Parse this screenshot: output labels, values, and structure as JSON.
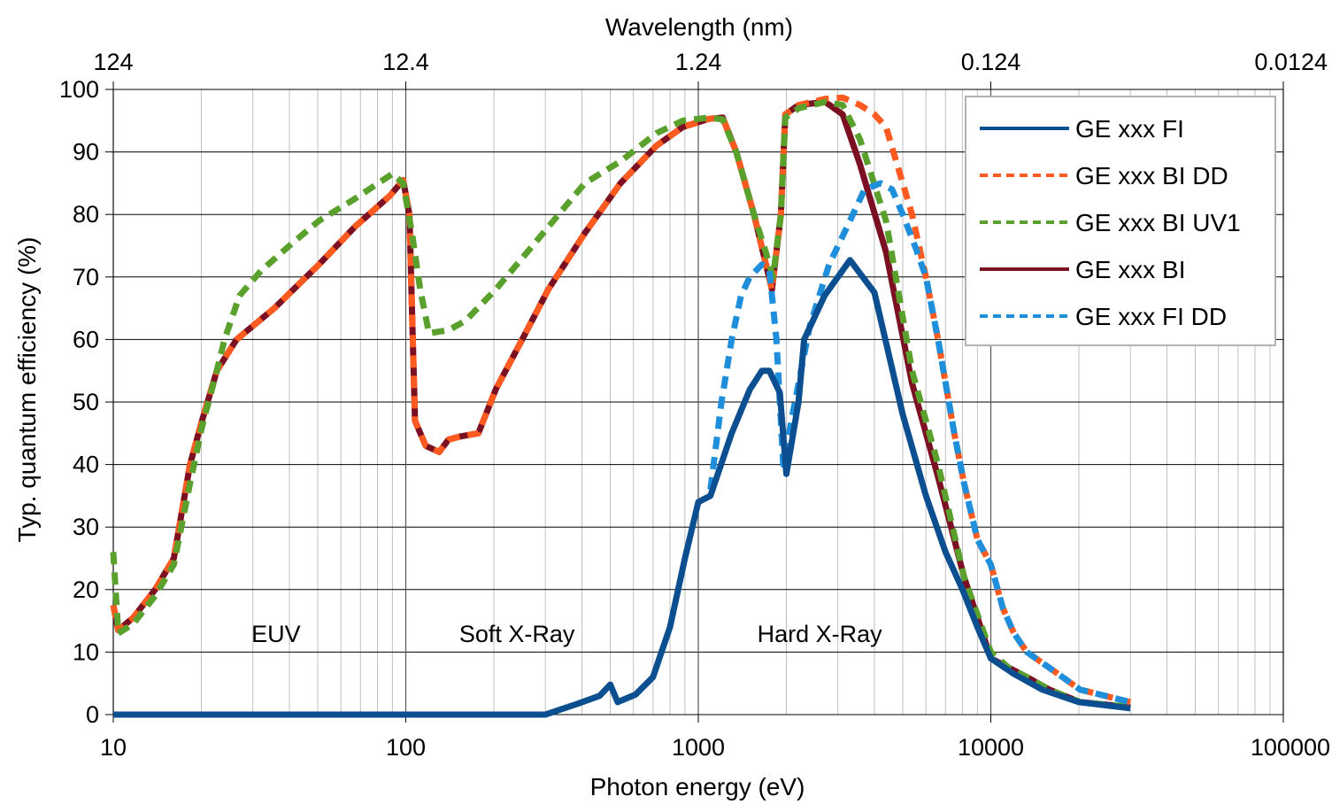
{
  "chart_data": {
    "type": "line",
    "title": "",
    "xlabel": "Photon energy (eV)",
    "x2label": "Wavelength (nm)",
    "ylabel": "Typ. quantum efficiency (%)",
    "xscale": "log",
    "xlim": [
      10,
      100000
    ],
    "ylim": [
      0,
      100
    ],
    "grid": true,
    "legend_position": "top-right",
    "x_ticks": [
      10,
      100,
      1000,
      10000,
      100000
    ],
    "x_tick_labels": [
      "10",
      "100",
      "1000",
      "10000",
      "100000"
    ],
    "x2_tick_labels": [
      "124",
      "12.4",
      "1.24",
      "0.124",
      "0.0124"
    ],
    "y_ticks": [
      0,
      10,
      20,
      30,
      40,
      50,
      60,
      70,
      80,
      90,
      100
    ],
    "y_tick_labels": [
      "0",
      "10",
      "20",
      "30",
      "40",
      "50",
      "60",
      "70",
      "80",
      "90",
      "100"
    ],
    "annotations": [
      {
        "text": "EUV",
        "x": 36,
        "y": 13
      },
      {
        "text": "Soft X-Ray",
        "x": 240,
        "y": 13
      },
      {
        "text": "Hard X-Ray",
        "x": 2600,
        "y": 13
      }
    ],
    "series": [
      {
        "name": "GE xxx FI",
        "color": "#0b4f91",
        "style": "solid",
        "x": [
          10,
          100,
          300,
          390,
          460,
          500,
          530,
          610,
          700,
          800,
          900,
          1000,
          1100,
          1300,
          1500,
          1650,
          1750,
          1900,
          2000,
          2200,
          2300,
          2700,
          3300,
          4000,
          5000,
          6000,
          7000,
          8000,
          9000,
          10000,
          12000,
          15000,
          20000,
          30000
        ],
        "y": [
          0,
          0,
          0,
          1.8,
          3,
          4.8,
          2,
          3.2,
          6,
          14,
          25,
          34,
          35,
          45,
          52,
          55,
          55,
          51.5,
          38.5,
          50,
          60,
          67,
          72.7,
          67.5,
          48,
          35,
          26,
          20,
          14,
          9,
          6.5,
          4,
          2,
          1
        ]
      },
      {
        "name": "GE xxx BI DD",
        "color": "#ff5a1f",
        "style": "dashed",
        "x": [
          10,
          10.4,
          11.7,
          13.9,
          16.1,
          18.3,
          20.1,
          22.6,
          26.4,
          35.5,
          50.5,
          66.9,
          88.3,
          97.9,
          102.9,
          107.5,
          117,
          130,
          140,
          154,
          177,
          203,
          250,
          307,
          409,
          542,
          720,
          885,
          1090,
          1211,
          1348,
          1550,
          1785,
          1915,
          1983,
          2204,
          2718,
          3115,
          3570,
          4000,
          4384,
          5000,
          5380,
          6000,
          6600,
          7500,
          8100,
          9000,
          10000,
          11000,
          12000,
          13280,
          15840,
          20200,
          30000
        ],
        "y": [
          17.5,
          13.5,
          15.5,
          20,
          25,
          40,
          47,
          55,
          60,
          65,
          72,
          78,
          83,
          85.5,
          80,
          47,
          43,
          42,
          44,
          44.5,
          45,
          52,
          60,
          68,
          77,
          85,
          91,
          94,
          95.3,
          95.5,
          90,
          80,
          68,
          80,
          96,
          97.5,
          98.5,
          98.7,
          97.5,
          96,
          94,
          85,
          80,
          70,
          60,
          45,
          37,
          28,
          24,
          17,
          13,
          10,
          7.5,
          4,
          2
        ]
      },
      {
        "name": "GE xxx BI UV1",
        "color": "#5aa02c",
        "style": "dashed",
        "x": [
          10,
          10.4,
          11.7,
          13.9,
          16.1,
          18.3,
          20.1,
          22.6,
          24,
          27,
          32,
          40,
          50.5,
          66.9,
          90,
          97.9,
          105,
          112,
          120,
          140,
          160,
          203,
          250,
          307,
          409,
          542,
          720,
          885,
          1090,
          1211,
          1348,
          1550,
          1700,
          1800,
          1915,
          1983,
          2204,
          2718,
          3115,
          3570,
          4384,
          5380,
          6600,
          8100,
          10000,
          11500,
          13280,
          15840,
          20200,
          30000
        ],
        "y": [
          26,
          13,
          14.5,
          19,
          24,
          37,
          46,
          55,
          60,
          67,
          71,
          75,
          79,
          82.5,
          86.5,
          85,
          77,
          68,
          61,
          61.5,
          63,
          68,
          73,
          78,
          85,
          88.5,
          93,
          95,
          95.5,
          95.2,
          90,
          80,
          74,
          70,
          80,
          95.5,
          97,
          98,
          97.5,
          92,
          79,
          55,
          40,
          22,
          10,
          7.5,
          6,
          4,
          2,
          1.2
        ]
      },
      {
        "name": "GE xxx BI",
        "color": "#7b1022",
        "style": "solid",
        "x": [
          10,
          10.4,
          11.7,
          13.9,
          16.1,
          18.3,
          20.1,
          22.6,
          26.4,
          35.5,
          50.5,
          66.9,
          88.3,
          97.9,
          102.9,
          107.5,
          117,
          130,
          140,
          154,
          177,
          203,
          250,
          307,
          409,
          542,
          720,
          885,
          1090,
          1211,
          1348,
          1550,
          1785,
          1915,
          1983,
          2204,
          2718,
          3115,
          3570,
          4384,
          5380,
          6600,
          8100,
          10000,
          13280,
          15840,
          20200,
          30000
        ],
        "y": [
          17.5,
          13.5,
          15.5,
          20,
          25,
          40,
          47,
          55,
          60,
          65,
          72,
          78,
          83,
          85.5,
          80,
          47,
          43,
          42,
          44,
          44.5,
          45,
          52,
          60,
          68,
          77,
          85,
          91,
          94,
          95.3,
          95.5,
          90,
          80,
          68,
          80,
          96,
          97.5,
          98,
          96,
          88,
          74,
          53,
          38,
          22,
          9,
          6,
          4,
          2,
          1.2
        ]
      },
      {
        "name": "GE xxx FI DD",
        "color": "#1f8fdc",
        "style": "dashed",
        "x": [
          1100,
          1200,
          1300,
          1400,
          1500,
          1650,
          1750,
          1850,
          1950,
          2100,
          2400,
          2800,
          3300,
          3700,
          4200,
          4600,
          5000,
          5500,
          6000,
          6600,
          7500,
          8100,
          9000,
          10000,
          11000,
          12000,
          13280,
          15840,
          20200,
          30000
        ],
        "y": [
          36,
          50,
          60,
          67,
          70,
          72,
          71,
          60,
          40,
          48,
          62,
          72,
          79,
          84,
          85,
          84,
          80,
          75,
          70,
          60,
          45,
          37,
          28,
          24,
          17,
          13,
          10,
          7.5,
          4,
          2
        ]
      }
    ]
  }
}
